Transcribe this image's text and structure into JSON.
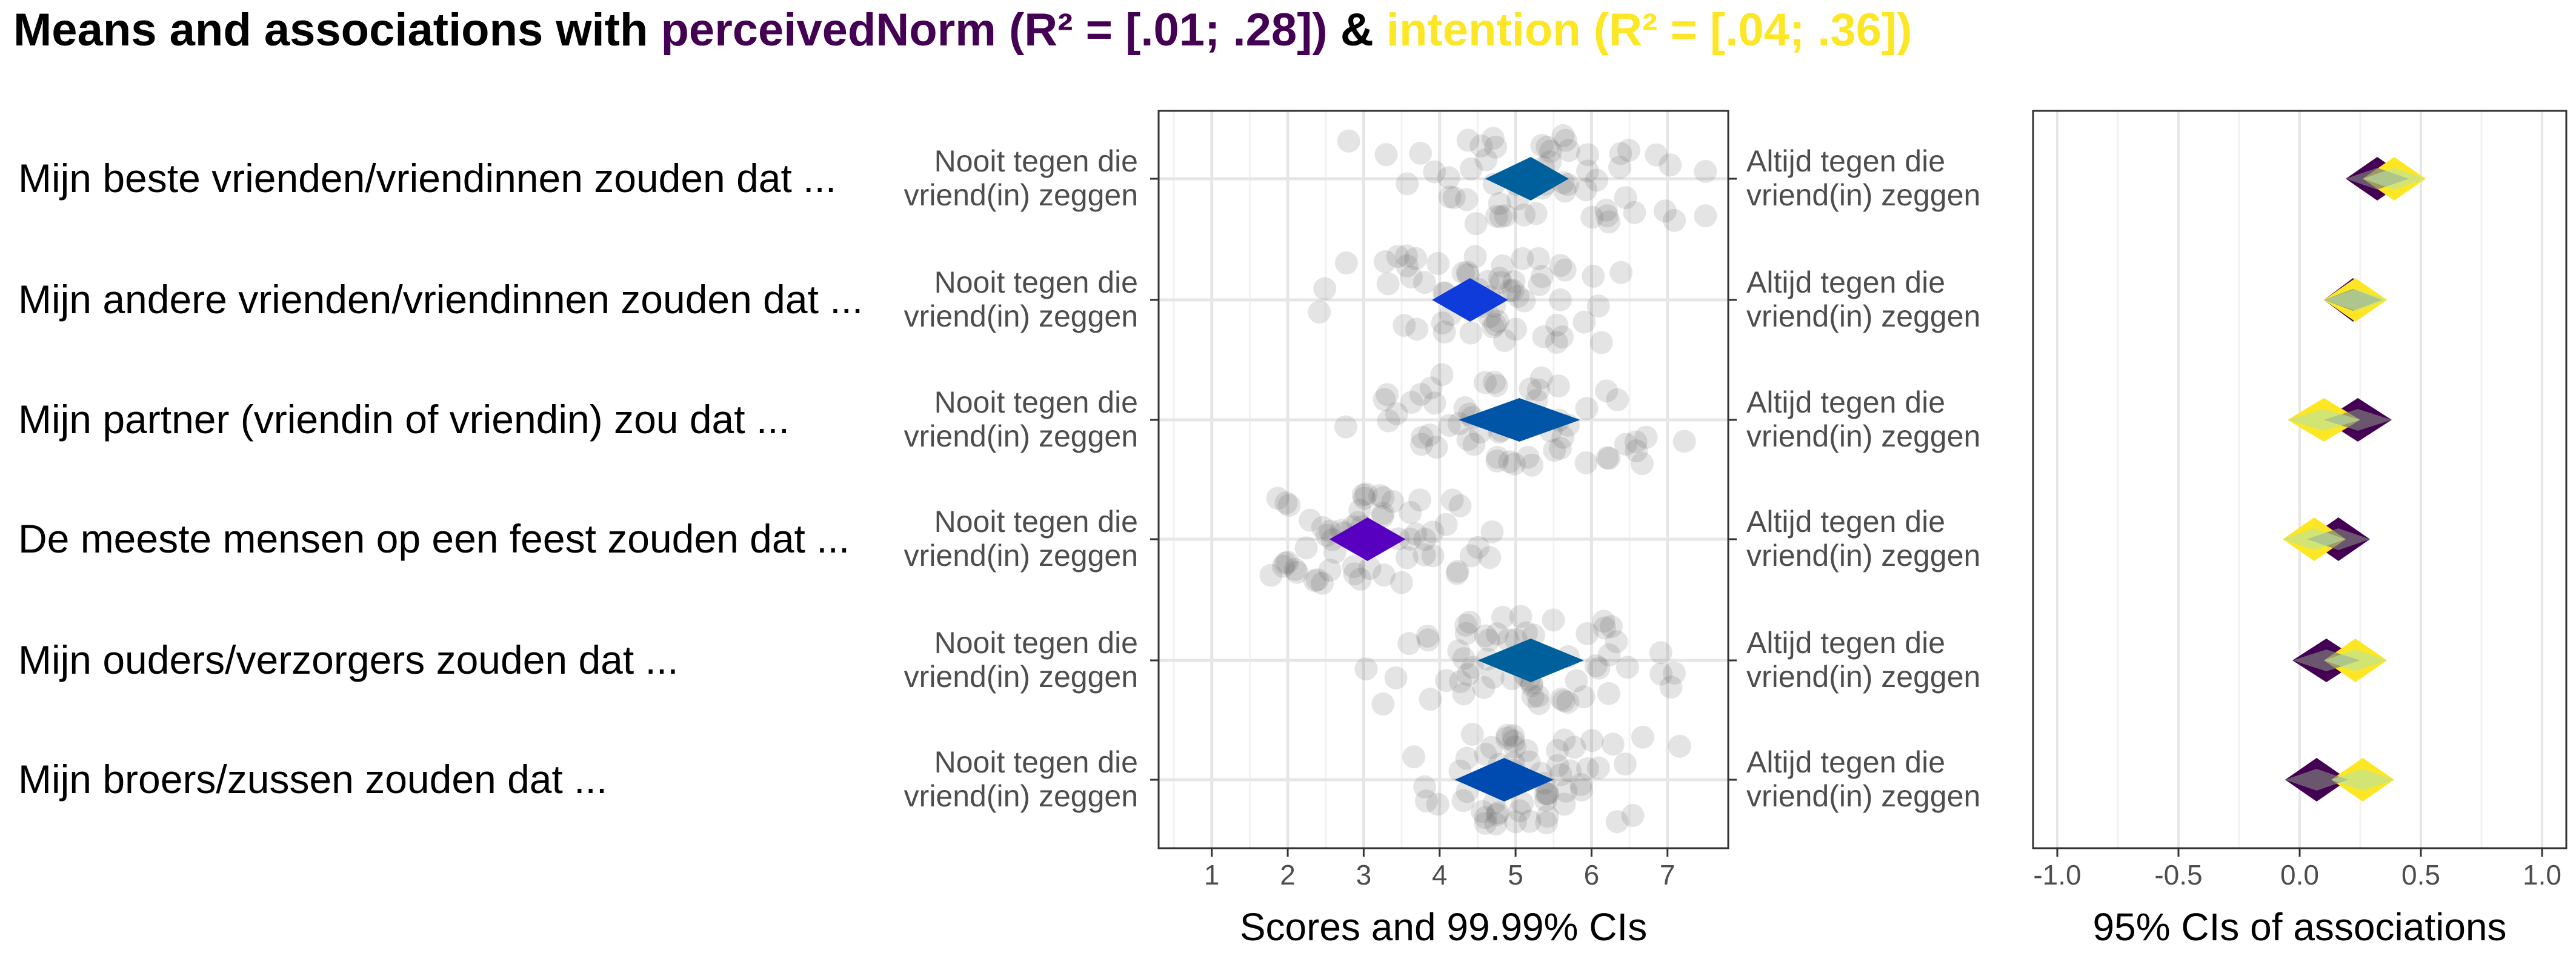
{
  "title": {
    "prefix": "Means and associations with ",
    "part1": "perceivedNorm (R² = [.01; .28])",
    "separator": " & ",
    "part2": "intention (R² = [.04; .36])",
    "color_part1": "#440154",
    "color_part2": "#FDE725"
  },
  "chart_data": {
    "type": "diamond-ci",
    "items": [
      "Mijn beste vrienden/vriendinnen zouden dat ...",
      "Mijn andere vrienden/vriendinnen zouden dat ...",
      "Mijn partner (vriendin of vriendin) zou dat ...",
      "De meeste mensen op een feest zouden dat ...",
      "Mijn ouders/verzorgers zouden dat ...",
      "Mijn broers/zussen zouden dat ..."
    ],
    "anchor_low": "Nooit tegen die vriend(in) zeggen",
    "anchor_high": "Altijd tegen die vriend(in) zeggen",
    "means_panel": {
      "xlabel": "Scores and 99.99% CIs",
      "xlim": [
        0.3,
        7.8
      ],
      "xticks": [
        1,
        2,
        3,
        4,
        5,
        6,
        7
      ],
      "diamonds": [
        {
          "lo": 4.6,
          "mean": 5.2,
          "hi": 5.7,
          "color": "#00609C"
        },
        {
          "lo": 3.9,
          "mean": 4.4,
          "hi": 4.9,
          "color": "#0F3BDB"
        },
        {
          "lo": 4.25,
          "mean": 5.05,
          "hi": 5.85,
          "color": "#0055A6"
        },
        {
          "lo": 2.55,
          "mean": 3.05,
          "hi": 3.55,
          "color": "#5700C0"
        },
        {
          "lo": 4.5,
          "mean": 5.2,
          "hi": 5.9,
          "color": "#00609C"
        },
        {
          "lo": 4.2,
          "mean": 4.85,
          "hi": 5.5,
          "color": "#004BB0"
        }
      ]
    },
    "assoc_panel": {
      "xlabel": "95% CIs of associations",
      "xlim": [
        -1.1,
        1.1
      ],
      "xticks": [
        -1.0,
        -0.5,
        0.0,
        0.5,
        1.0
      ],
      "tick_labels": [
        "-1.0",
        "-0.5",
        "0.0",
        "0.5",
        "1.0"
      ],
      "series": [
        {
          "name": "perceivedNorm",
          "color": "#440154",
          "intervals": [
            {
              "lo": 0.19,
              "mid": 0.32,
              "hi": 0.45
            },
            {
              "lo": 0.1,
              "mid": 0.22,
              "hi": 0.34
            },
            {
              "lo": 0.1,
              "mid": 0.24,
              "hi": 0.38
            },
            {
              "lo": 0.03,
              "mid": 0.16,
              "hi": 0.29
            },
            {
              "lo": -0.03,
              "mid": 0.11,
              "hi": 0.25
            },
            {
              "lo": -0.06,
              "mid": 0.07,
              "hi": 0.2
            }
          ]
        },
        {
          "name": "intention",
          "color": "#FDE725",
          "intervals": [
            {
              "lo": 0.26,
              "mid": 0.39,
              "hi": 0.52
            },
            {
              "lo": 0.1,
              "mid": 0.23,
              "hi": 0.36
            },
            {
              "lo": -0.05,
              "mid": 0.1,
              "hi": 0.25
            },
            {
              "lo": -0.07,
              "mid": 0.06,
              "hi": 0.19
            },
            {
              "lo": 0.1,
              "mid": 0.23,
              "hi": 0.36
            },
            {
              "lo": 0.13,
              "mid": 0.26,
              "hi": 0.39
            }
          ]
        }
      ]
    }
  }
}
